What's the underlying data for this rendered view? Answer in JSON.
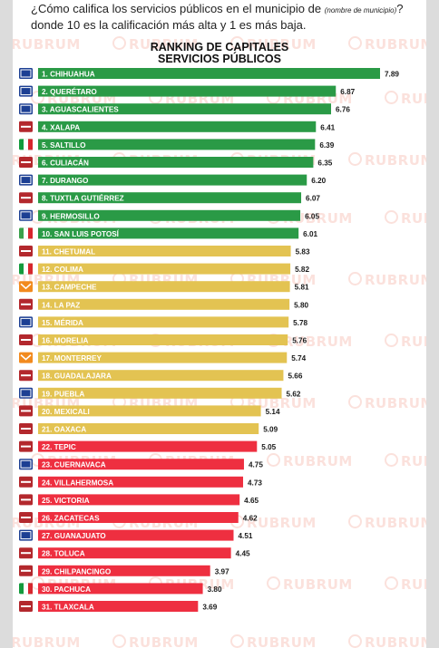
{
  "question": {
    "text_before": "¿Cómo califica los servicios públicos en el municipio de ",
    "note": "(nombre de municipio)",
    "text_after": "? donde 10 es la calificación más alta y 1 es más baja."
  },
  "watermark": "RUBRUM",
  "chart_data": {
    "type": "bar",
    "orientation": "horizontal",
    "title": "RANKING DE CAPITALES",
    "subtitle": "SERVICIOS PÚBLICOS",
    "xlim": [
      0,
      7.89
    ],
    "grid": false,
    "legend": "none",
    "categories": [
      "1. CHIHUAHUA",
      "2. QUERÉTARO",
      "3. AGUASCALIENTES",
      "4. XALAPA",
      "5. SALTILLO",
      "6. CULIACÁN",
      "7. DURANGO",
      "8. TUXTLA GUTIÉRREZ",
      "9. HERMOSILLO",
      "10. SAN LUIS POTOSÍ",
      "11. CHETUMAL",
      "12. COLIMA",
      "13. CAMPECHE",
      "14. LA PAZ",
      "15. MÉRIDA",
      "16. MORELIA",
      "17. MONTERREY",
      "18. GUADALAJARA",
      "19. PUEBLA",
      "20. MEXICALI",
      "21. OAXACA",
      "22. TEPIC",
      "23. CUERNAVACA",
      "24. VILLAHERMOSA",
      "25. VICTORIA",
      "26. ZACATECAS",
      "27. GUANAJUATO",
      "28. TOLUCA",
      "29. CHILPANCINGO",
      "30. PACHUCA",
      "31. TLAXCALA"
    ],
    "values": [
      7.89,
      6.87,
      6.76,
      6.41,
      6.39,
      6.35,
      6.2,
      6.07,
      6.05,
      6.01,
      5.83,
      5.82,
      5.81,
      5.8,
      5.78,
      5.76,
      5.74,
      5.66,
      5.62,
      5.14,
      5.09,
      5.05,
      4.75,
      4.73,
      4.65,
      4.62,
      4.51,
      4.45,
      3.97,
      3.8,
      3.69
    ],
    "value_labels": [
      "7.89",
      "6.87",
      "6.76",
      "6.41",
      "6.39",
      "6.35",
      "6.20",
      "6.07",
      "6.05",
      "6.01",
      "5.83",
      "5.82",
      "5.81",
      "5.80",
      "5.78",
      "5.76",
      "5.74",
      "5.66",
      "5.62",
      "5.14",
      "5.09",
      "5.05",
      "4.75",
      "4.73",
      "4.65",
      "4.62",
      "4.51",
      "4.45",
      "3.97",
      "3.80",
      "3.69"
    ],
    "bar_groups": [
      "green",
      "green",
      "green",
      "green",
      "green",
      "green",
      "green",
      "green",
      "green",
      "green",
      "yellow",
      "yellow",
      "yellow",
      "yellow",
      "yellow",
      "yellow",
      "yellow",
      "yellow",
      "yellow",
      "yellow",
      "yellow",
      "red",
      "red",
      "red",
      "red",
      "red",
      "red",
      "red",
      "red",
      "red",
      "red"
    ],
    "colors": {
      "green": "#2a9a46",
      "yellow": "#e3c352",
      "red": "#ee2f40"
    },
    "party_badges": [
      "PAN",
      "PAN",
      "PAN",
      "MORENA",
      "PRI",
      "MORENA",
      "PAN",
      "MORENA",
      "PAN",
      "PVEM",
      "MORENA",
      "PRI",
      "MC",
      "MORENA",
      "PAN",
      "MORENA",
      "MC",
      "MORENA",
      "PAN",
      "MORENA",
      "MORENA",
      "MORENA",
      "PAN",
      "MORENA",
      "MORENA",
      "MORENA",
      "PAN",
      "MORENA",
      "MORENA",
      "PRI",
      "MORENA"
    ],
    "badge_colors": {
      "PAN": "#1c3f93",
      "MORENA": "#b3282d",
      "PRI": "#139a3c",
      "MC": "#f28a1e",
      "PVEM": "#3aa04b"
    }
  }
}
